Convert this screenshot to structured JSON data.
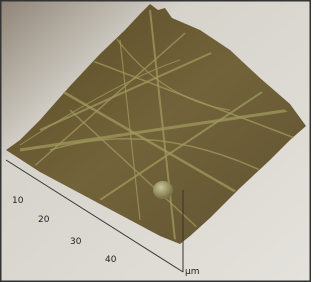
{
  "axis": {
    "ticks": [
      "10",
      "20",
      "30",
      "40"
    ],
    "unit": "μm"
  }
}
